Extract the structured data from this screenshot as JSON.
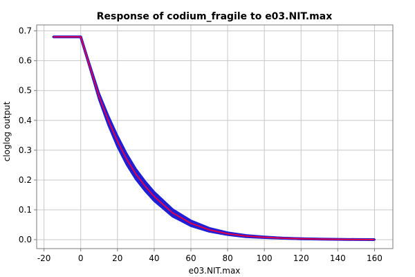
{
  "chart_data": {
    "type": "line",
    "title": "Response of codium_fragile to e03.NIT.max",
    "xlabel": "e03.NIT.max",
    "ylabel": "cloglog output",
    "xlim": [
      -24,
      170
    ],
    "ylim": [
      -0.03,
      0.72
    ],
    "x_ticks": [
      -20,
      0,
      20,
      40,
      60,
      80,
      100,
      120,
      140,
      160
    ],
    "x_tick_labels": [
      "-20",
      "0",
      "20",
      "40",
      "60",
      "80",
      "100",
      "120",
      "140",
      "160"
    ],
    "y_ticks": [
      0.0,
      0.1,
      0.2,
      0.3,
      0.4,
      0.5,
      0.6,
      0.7
    ],
    "y_tick_labels": [
      "0.0",
      "0.1",
      "0.2",
      "0.3",
      "0.4",
      "0.5",
      "0.6",
      "0.7"
    ],
    "grid": true,
    "legend": "none",
    "series": [
      {
        "x": [
          -15,
          0,
          5,
          10,
          15,
          20,
          25,
          30,
          35,
          40,
          50,
          60,
          70,
          80,
          90,
          100,
          110,
          120,
          130,
          140,
          150,
          160
        ],
        "values": [
          0.68,
          0.68,
          0.58,
          0.48,
          0.4,
          0.33,
          0.27,
          0.22,
          0.18,
          0.145,
          0.09,
          0.055,
          0.033,
          0.02,
          0.012,
          0.008,
          0.005,
          0.003,
          0.002,
          0.001,
          0.0005,
          0.0003
        ],
        "color": "#e0004a"
      },
      {
        "x": [
          -15,
          0,
          5,
          10,
          15,
          20,
          25,
          30,
          35,
          40,
          50,
          60,
          70,
          80,
          90,
          100,
          110,
          120,
          130,
          140,
          150,
          160
        ],
        "values": [
          0.68,
          0.68,
          0.58,
          0.48,
          0.4,
          0.33,
          0.27,
          0.22,
          0.18,
          0.145,
          0.09,
          0.055,
          0.033,
          0.02,
          0.012,
          0.008,
          0.005,
          0.003,
          0.002,
          0.001,
          0.0005,
          0.0003
        ],
        "lower": [
          0.68,
          0.68,
          0.575,
          0.47,
          0.385,
          0.312,
          0.252,
          0.203,
          0.164,
          0.13,
          0.078,
          0.046,
          0.027,
          0.016,
          0.009,
          0.006,
          0.004,
          0.002,
          0.0015,
          0.0008,
          0.0004,
          0.0002
        ],
        "upper": [
          0.68,
          0.68,
          0.585,
          0.49,
          0.415,
          0.348,
          0.288,
          0.237,
          0.196,
          0.16,
          0.102,
          0.064,
          0.039,
          0.024,
          0.015,
          0.01,
          0.006,
          0.004,
          0.0025,
          0.0012,
          0.0006,
          0.0004
        ],
        "color": "#1f1fd6"
      }
    ]
  }
}
